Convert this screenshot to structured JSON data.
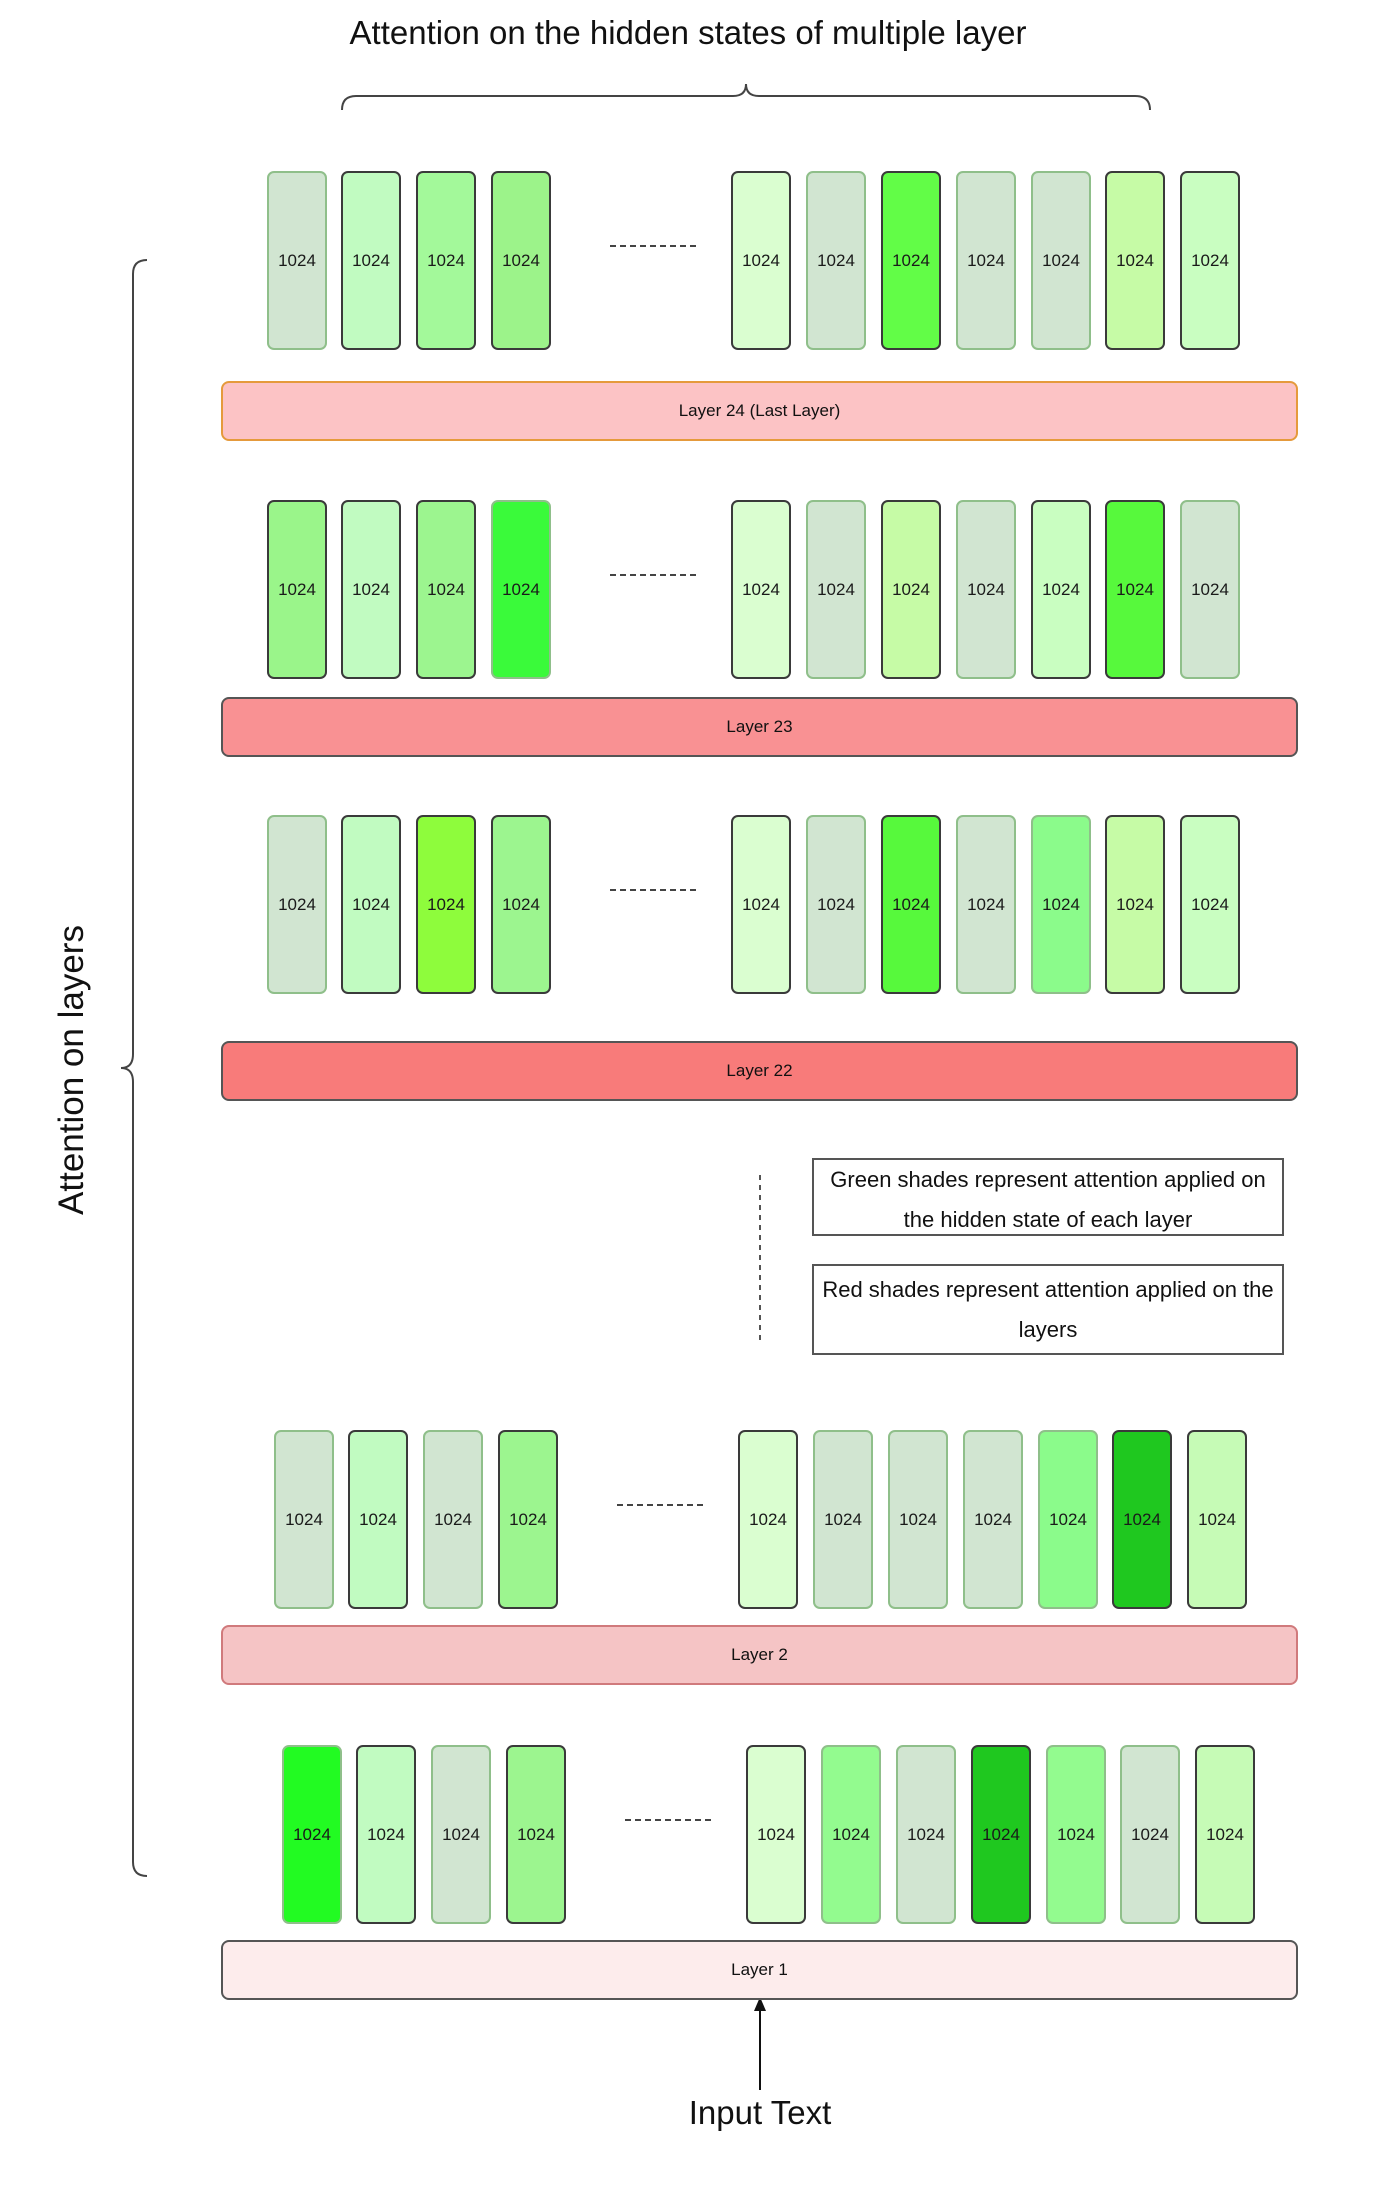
{
  "title": "Attention on the hidden states of multiple layer",
  "side_title": "Attention on layers",
  "input_label": "Input Text",
  "notes": [
    "Green shades represent attention applied on the hidden state of each layer",
    "Red shades represent attention applied on the layers"
  ],
  "cell_label": "1024",
  "ellipsis": "..........",
  "layers": [
    {
      "label": "Layer 24 (Last Layer)",
      "color": "#fcc3c5",
      "border": "#e59a3c"
    },
    {
      "label": "Layer 23",
      "color": "#f99193",
      "border": "#555555"
    },
    {
      "label": "Layer 22",
      "color": "#f87b7a",
      "border": "#555555"
    },
    {
      "label": "Layer 2",
      "color": "#f5c4c5",
      "border": "#d07a7c"
    },
    {
      "label": "Layer 1",
      "color": "#fdecec",
      "border": "#555555"
    }
  ],
  "cell_rows": [
    {
      "cells": [
        {
          "color": "#d1e5d1",
          "border": "light"
        },
        {
          "color": "#c1fbc1",
          "border": "dark"
        },
        {
          "color": "#a3f99a",
          "border": "dark"
        },
        {
          "color": "#9cf38a",
          "border": "dark"
        },
        {
          "color": "#dafed0",
          "border": "dark"
        },
        {
          "color": "#d1e5d1",
          "border": "light"
        },
        {
          "color": "#62fd47",
          "border": "dark"
        },
        {
          "color": "#d1e5d1",
          "border": "light"
        },
        {
          "color": "#d1e5d1",
          "border": "light"
        },
        {
          "color": "#c6fba6",
          "border": "dark"
        },
        {
          "color": "#c9fec1",
          "border": "dark"
        }
      ]
    },
    {
      "cells": [
        {
          "color": "#9af58a",
          "border": "dark"
        },
        {
          "color": "#c1fbc1",
          "border": "dark"
        },
        {
          "color": "#9cf58f",
          "border": "dark"
        },
        {
          "color": "#3afa3a",
          "border": "light"
        },
        {
          "color": "#dafed0",
          "border": "dark"
        },
        {
          "color": "#d1e5d1",
          "border": "light"
        },
        {
          "color": "#c6fba6",
          "border": "dark"
        },
        {
          "color": "#d1e5d1",
          "border": "light"
        },
        {
          "color": "#c9fec1",
          "border": "dark"
        },
        {
          "color": "#57f93c",
          "border": "dark"
        },
        {
          "color": "#d1e5d1",
          "border": "light"
        }
      ]
    },
    {
      "cells": [
        {
          "color": "#d1e5d1",
          "border": "light"
        },
        {
          "color": "#c1fbc1",
          "border": "dark"
        },
        {
          "color": "#8efc3c",
          "border": "dark"
        },
        {
          "color": "#9cf58f",
          "border": "dark"
        },
        {
          "color": "#dafed0",
          "border": "dark"
        },
        {
          "color": "#d1e5d1",
          "border": "light"
        },
        {
          "color": "#57f93c",
          "border": "dark"
        },
        {
          "color": "#d1e5d1",
          "border": "light"
        },
        {
          "color": "#8bfb8b",
          "border": "light"
        },
        {
          "color": "#c6fba6",
          "border": "dark"
        },
        {
          "color": "#c9fec1",
          "border": "dark"
        }
      ]
    },
    {
      "cells": [
        {
          "color": "#d1e5d1",
          "border": "light"
        },
        {
          "color": "#c1fbc1",
          "border": "dark"
        },
        {
          "color": "#d1e5d1",
          "border": "light"
        },
        {
          "color": "#9cf58f",
          "border": "dark"
        },
        {
          "color": "#dafed0",
          "border": "dark"
        },
        {
          "color": "#d1e5d1",
          "border": "light"
        },
        {
          "color": "#d1e5d1",
          "border": "light"
        },
        {
          "color": "#d1e5d1",
          "border": "light"
        },
        {
          "color": "#8bfb8b",
          "border": "light"
        },
        {
          "color": "#1fc81f",
          "border": "dark"
        },
        {
          "color": "#c6fbb6",
          "border": "dark"
        }
      ]
    },
    {
      "cells": [
        {
          "color": "#22fb22",
          "border": "light"
        },
        {
          "color": "#c1fbc1",
          "border": "dark"
        },
        {
          "color": "#d1e5d1",
          "border": "light"
        },
        {
          "color": "#9cf58f",
          "border": "dark"
        },
        {
          "color": "#dafed0",
          "border": "dark"
        },
        {
          "color": "#93fb8f",
          "border": "light"
        },
        {
          "color": "#d1e5d1",
          "border": "light"
        },
        {
          "color": "#1fc81f",
          "border": "dark"
        },
        {
          "color": "#93fb8f",
          "border": "light"
        },
        {
          "color": "#d1e5d1",
          "border": "light"
        },
        {
          "color": "#c6fbb6",
          "border": "dark"
        }
      ]
    }
  ]
}
